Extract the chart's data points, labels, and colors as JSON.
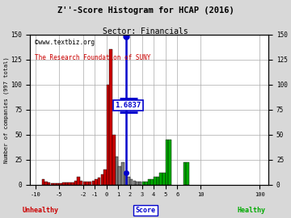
{
  "title": "Z''-Score Histogram for HCAP (2016)",
  "sector": "Financials",
  "watermark_line1": "©www.textbiz.org",
  "watermark_line2": "The Research Foundation of SUNY",
  "total_companies": 997,
  "xlabel": "Score",
  "ylabel": "Number of companies (997 total)",
  "score_value": 1.6837,
  "score_display": "1.6837",
  "ylim": [
    0,
    150
  ],
  "yticks": [
    0,
    25,
    50,
    75,
    100,
    125,
    150
  ],
  "xtick_labels": [
    "-10",
    "-5",
    "-2",
    "-1",
    "0",
    "1",
    "2",
    "3",
    "4",
    "5",
    "6",
    "10",
    "100"
  ],
  "unhealthy_label": "Unhealthy",
  "healthy_label": "Healthy",
  "bg_color": "#d8d8d8",
  "plot_bg_color": "#ffffff",
  "grid_color": "#aaaaaa",
  "title_color": "#000000",
  "score_line_color": "#0000cc",
  "score_dot_color": "#0000cc",
  "watermark_color1": "#000000",
  "watermark_color2": "#cc0000",
  "unhealthy_color": "#cc0000",
  "healthy_color": "#00aa00",
  "bars": [
    {
      "slot": -13.0,
      "height": 5,
      "color": "#cc0000"
    },
    {
      "slot": -12.5,
      "height": 3,
      "color": "#cc0000"
    },
    {
      "slot": -12.0,
      "height": 2,
      "color": "#cc0000"
    },
    {
      "slot": -11.5,
      "height": 1,
      "color": "#cc0000"
    },
    {
      "slot": -11.0,
      "height": 1,
      "color": "#cc0000"
    },
    {
      "slot": -10.5,
      "height": 1,
      "color": "#cc0000"
    },
    {
      "slot": -10.0,
      "height": 1,
      "color": "#cc0000"
    },
    {
      "slot": -9.5,
      "height": 2,
      "color": "#cc0000"
    },
    {
      "slot": -9.0,
      "height": 2,
      "color": "#cc0000"
    },
    {
      "slot": -8.5,
      "height": 2,
      "color": "#cc0000"
    },
    {
      "slot": -8.0,
      "height": 2,
      "color": "#cc0000"
    },
    {
      "slot": -7.5,
      "height": 4,
      "color": "#cc0000"
    },
    {
      "slot": -7.0,
      "height": 8,
      "color": "#cc0000"
    },
    {
      "slot": -6.5,
      "height": 4,
      "color": "#cc0000"
    },
    {
      "slot": -6.0,
      "height": 3,
      "color": "#cc0000"
    },
    {
      "slot": -5.5,
      "height": 3,
      "color": "#cc0000"
    },
    {
      "slot": -5.0,
      "height": 3,
      "color": "#cc0000"
    },
    {
      "slot": -4.5,
      "height": 4,
      "color": "#cc0000"
    },
    {
      "slot": -4.0,
      "height": 5,
      "color": "#cc0000"
    },
    {
      "slot": -3.5,
      "height": 7,
      "color": "#cc0000"
    },
    {
      "slot": -3.0,
      "height": 10,
      "color": "#cc0000"
    },
    {
      "slot": -2.5,
      "height": 15,
      "color": "#cc0000"
    },
    {
      "slot": -2.0,
      "height": 100,
      "color": "#cc0000"
    },
    {
      "slot": -1.5,
      "height": 135,
      "color": "#cc0000"
    },
    {
      "slot": -1.0,
      "height": 50,
      "color": "#cc0000"
    },
    {
      "slot": -0.5,
      "height": 28,
      "color": "#808080"
    },
    {
      "slot": 0.0,
      "height": 18,
      "color": "#808080"
    },
    {
      "slot": 0.5,
      "height": 22,
      "color": "#808080"
    },
    {
      "slot": 1.0,
      "height": 10,
      "color": "#808080"
    },
    {
      "slot": 1.5,
      "height": 8,
      "color": "#808080"
    },
    {
      "slot": 2.0,
      "height": 5,
      "color": "#808080"
    },
    {
      "slot": 2.5,
      "height": 4,
      "color": "#808080"
    },
    {
      "slot": 3.0,
      "height": 3,
      "color": "#808080"
    },
    {
      "slot": 3.5,
      "height": 3,
      "color": "#808080"
    },
    {
      "slot": 4.0,
      "height": 3,
      "color": "#00aa00"
    },
    {
      "slot": 4.5,
      "height": 3,
      "color": "#00aa00"
    },
    {
      "slot": 5.0,
      "height": 5,
      "color": "#00aa00"
    },
    {
      "slot": 5.5,
      "height": 5,
      "color": "#00aa00"
    },
    {
      "slot": 6.0,
      "height": 8,
      "color": "#00aa00"
    },
    {
      "slot": 6.5,
      "height": 8,
      "color": "#00aa00"
    },
    {
      "slot": 7.0,
      "height": 12,
      "color": "#00aa00"
    },
    {
      "slot": 7.5,
      "height": 12,
      "color": "#00aa00"
    },
    {
      "slot": 8.0,
      "height": 45,
      "color": "#00aa00"
    },
    {
      "slot": 8.5,
      "height": 45,
      "color": "#00aa00"
    },
    {
      "slot": 11.0,
      "height": 22,
      "color": "#00aa00"
    },
    {
      "slot": 11.5,
      "height": 22,
      "color": "#00aa00"
    }
  ],
  "xtick_slots": [
    -14,
    -10,
    -6,
    -4,
    -2,
    0,
    2,
    4,
    6,
    8,
    10,
    14,
    24
  ],
  "score_slot": 1.3837,
  "xlim_slots": [
    -15,
    25.5
  ]
}
